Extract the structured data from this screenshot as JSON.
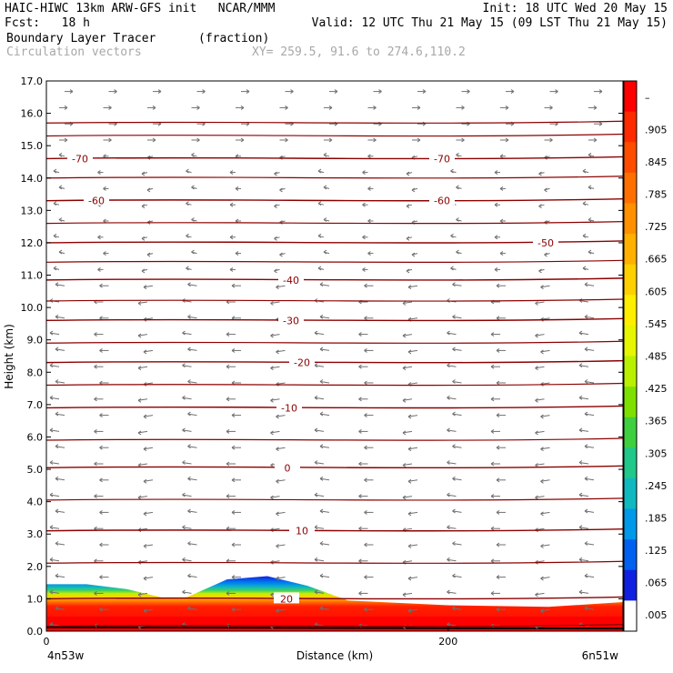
{
  "header": {
    "line1_left": "HAIC-HIWC 13km ARW-GFS init   NCAR/MMM",
    "line1_right": "Init: 18 UTC Wed 20 May 15",
    "line2_left": "Fcst:   18 h",
    "line2_right": "Valid: 12 UTC Thu 21 May 15 (09 LST Thu 21 May 15)",
    "field1": "Boundary Layer Tracer",
    "field1_units": "(fraction)",
    "field2": "Circulation vectors",
    "xy_info": "XY= 259.5, 91.6 to 274.6,110.2"
  },
  "chart_data": {
    "type": "heatmap",
    "ylabel": "Height (km)",
    "xlabel": "Distance (km)",
    "x_range": [
      0,
      287
    ],
    "x_ticks": [
      0,
      200
    ],
    "x_tick_labels": [
      "0",
      "200"
    ],
    "x_end_labels": [
      "4n53w",
      "6n51w"
    ],
    "y_range": [
      0,
      17
    ],
    "y_ticks": [
      "0.0",
      "1.0",
      "2.0",
      "3.0",
      "4.0",
      "5.0",
      "6.0",
      "7.0",
      "8.0",
      "9.0",
      "10.0",
      "11.0",
      "12.0",
      "13.0",
      "14.0",
      "15.0",
      "16.0",
      "17.0"
    ],
    "colorbar": {
      "labels": [
        "–",
        ".905",
        ".845",
        ".785",
        ".725",
        ".665",
        ".605",
        ".545",
        ".485",
        ".425",
        ".365",
        ".305",
        ".245",
        ".185",
        ".125",
        ".065",
        ".005"
      ],
      "colors": [
        "#ff0000",
        "#ff2a00",
        "#ff4d00",
        "#ff7000",
        "#ff9000",
        "#ffb000",
        "#ffd000",
        "#ffee00",
        "#e6f500",
        "#b8f000",
        "#7ee000",
        "#3fd040",
        "#20c88a",
        "#10b8c0",
        "#0098e8",
        "#0060f0",
        "#1020e0",
        "#ffffff"
      ]
    },
    "tracer_top_profile": {
      "x": [
        0,
        20,
        40,
        60,
        70,
        90,
        110,
        130,
        150,
        200,
        250,
        287
      ],
      "top_km": [
        1.45,
        1.45,
        1.3,
        1.0,
        1.05,
        1.6,
        1.7,
        1.4,
        0.95,
        0.8,
        0.75,
        0.9
      ]
    },
    "temperature_contours_C": [
      {
        "value": 20,
        "km": 1.0,
        "label": "20"
      },
      {
        "value": 10,
        "km": 3.1,
        "label": "10"
      },
      {
        "value": 0,
        "km": 5.05,
        "label": "0"
      },
      {
        "value": -10,
        "km": 6.9,
        "label": "-10"
      },
      {
        "value": -20,
        "km": 8.3,
        "label": "-20"
      },
      {
        "value": -30,
        "km": 9.6,
        "label": "-30"
      },
      {
        "value": -40,
        "km": 10.85,
        "label": "-40"
      },
      {
        "value": -50,
        "km": 12.0,
        "label": "-50"
      },
      {
        "value": -60,
        "km": 13.3,
        "label": "-60"
      },
      {
        "value": -70,
        "km": 14.6,
        "label": "-70"
      }
    ],
    "unlabeled_contours_km": [
      0.15,
      2.1,
      4.05,
      5.9,
      7.6,
      8.9,
      10.2,
      11.4,
      12.6,
      14.0,
      15.3,
      15.7
    ]
  }
}
